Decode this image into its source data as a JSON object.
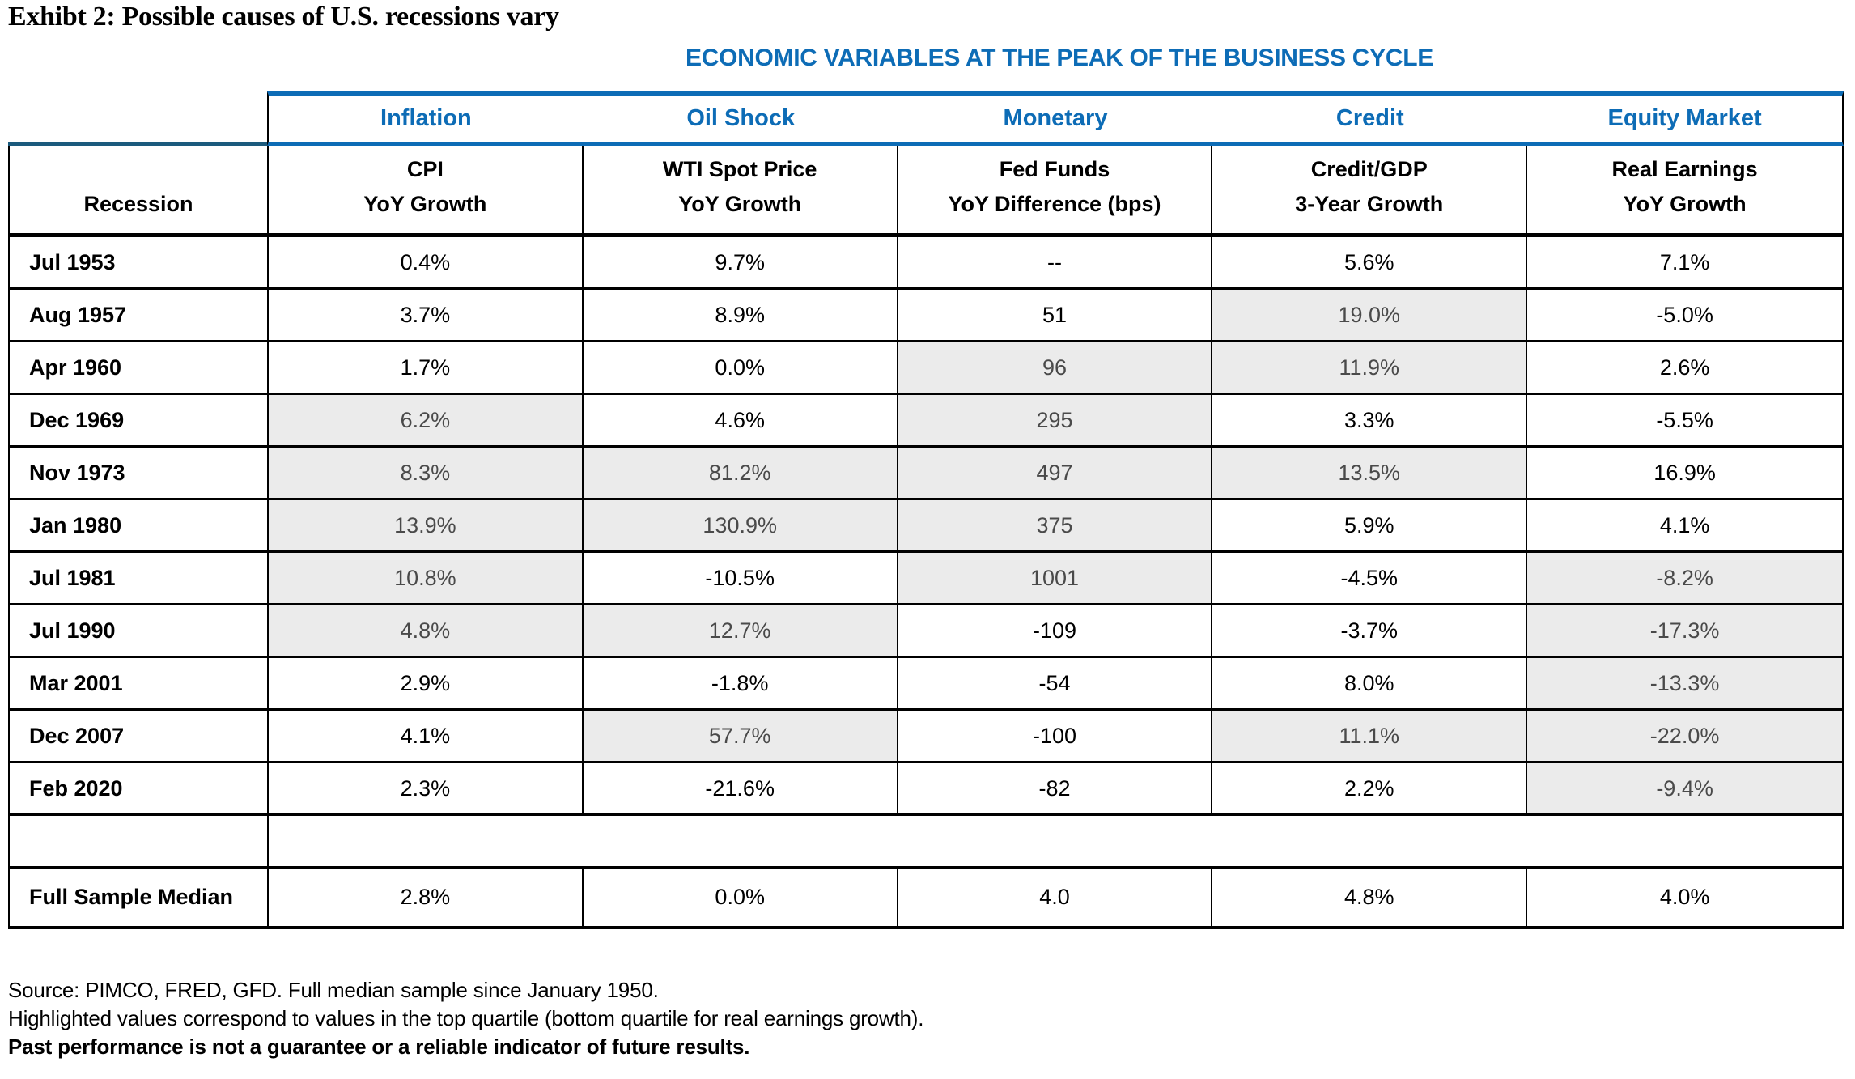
{
  "title": "Exhibt 2: Possible causes of U.S. recessions vary",
  "banner": "ECONOMIC VARIABLES AT THE PEAK OF THE BUSINESS CYCLE",
  "colors": {
    "accent_blue": "#0D6CB6",
    "stub_rule_teal": "#1B5A7D",
    "highlight_bg": "#EBEBEB",
    "highlight_text": "#4A4A4A"
  },
  "chart_data": {
    "type": "table",
    "title": "ECONOMIC VARIABLES AT THE PEAK OF THE BUSINESS CYCLE",
    "stub_header": "Recession",
    "column_groups": [
      "Inflation",
      "Oil Shock",
      "Monetary",
      "Credit",
      "Equity Market"
    ],
    "column_subheaders": [
      {
        "line1": "CPI",
        "line2": "YoY Growth"
      },
      {
        "line1": "WTI Spot Price",
        "line2": "YoY Growth"
      },
      {
        "line1": "Fed Funds",
        "line2": "YoY Difference (bps)"
      },
      {
        "line1": "Credit/GDP",
        "line2": "3-Year Growth"
      },
      {
        "line1": "Real Earnings",
        "line2": "YoY Growth"
      }
    ],
    "rows": [
      {
        "label": "Jul 1953",
        "values": [
          "0.4%",
          "9.7%",
          "--",
          "5.6%",
          "7.1%"
        ],
        "highlight": [
          false,
          false,
          false,
          false,
          false
        ]
      },
      {
        "label": "Aug 1957",
        "values": [
          "3.7%",
          "8.9%",
          "51",
          "19.0%",
          "-5.0%"
        ],
        "highlight": [
          false,
          false,
          false,
          true,
          false
        ]
      },
      {
        "label": "Apr 1960",
        "values": [
          "1.7%",
          "0.0%",
          "96",
          "11.9%",
          "2.6%"
        ],
        "highlight": [
          false,
          false,
          true,
          true,
          false
        ]
      },
      {
        "label": "Dec 1969",
        "values": [
          "6.2%",
          "4.6%",
          "295",
          "3.3%",
          "-5.5%"
        ],
        "highlight": [
          true,
          false,
          true,
          false,
          false
        ]
      },
      {
        "label": "Nov 1973",
        "values": [
          "8.3%",
          "81.2%",
          "497",
          "13.5%",
          "16.9%"
        ],
        "highlight": [
          true,
          true,
          true,
          true,
          false
        ]
      },
      {
        "label": "Jan 1980",
        "values": [
          "13.9%",
          "130.9%",
          "375",
          "5.9%",
          "4.1%"
        ],
        "highlight": [
          true,
          true,
          true,
          false,
          false
        ]
      },
      {
        "label": "Jul 1981",
        "values": [
          "10.8%",
          "-10.5%",
          "1001",
          "-4.5%",
          "-8.2%"
        ],
        "highlight": [
          true,
          false,
          true,
          false,
          true
        ]
      },
      {
        "label": "Jul 1990",
        "values": [
          "4.8%",
          "12.7%",
          "-109",
          "-3.7%",
          "-17.3%"
        ],
        "highlight": [
          true,
          true,
          false,
          false,
          true
        ]
      },
      {
        "label": "Mar 2001",
        "values": [
          "2.9%",
          "-1.8%",
          "-54",
          "8.0%",
          "-13.3%"
        ],
        "highlight": [
          false,
          false,
          false,
          false,
          true
        ]
      },
      {
        "label": "Dec 2007",
        "values": [
          "4.1%",
          "57.7%",
          "-100",
          "11.1%",
          "-22.0%"
        ],
        "highlight": [
          false,
          true,
          false,
          true,
          true
        ]
      },
      {
        "label": "Feb 2020",
        "values": [
          "2.3%",
          "-21.6%",
          "-82",
          "2.2%",
          "-9.4%"
        ],
        "highlight": [
          false,
          false,
          false,
          false,
          true
        ]
      }
    ],
    "summary_row": {
      "label": "Full Sample Median",
      "values": [
        "2.8%",
        "0.0%",
        "4.0",
        "4.8%",
        "4.0%"
      ]
    },
    "highlight_meaning": "Top quartile (bottom quartile for real earnings growth)"
  },
  "footnotes": {
    "line1": "Source: PIMCO, FRED, GFD. Full median sample since January 1950.",
    "line2": "Highlighted values correspond to values in the top quartile (bottom quartile for real earnings growth).",
    "line3": "Past performance is not a guarantee or a reliable indicator of future results."
  }
}
